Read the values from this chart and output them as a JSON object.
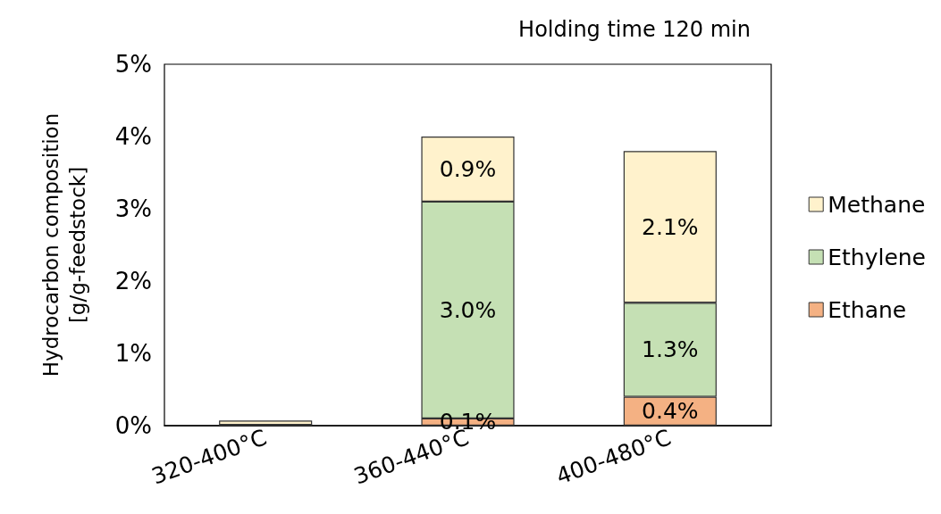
{
  "chart_data": {
    "type": "bar",
    "stacked": true,
    "title": "Holding time 120 min",
    "ylabel": "Hydrocarbon composition\n[g/g-feedstock]",
    "categories": [
      "320-400°C",
      "360-440°C",
      "400-480°C"
    ],
    "series": [
      {
        "name": "Ethane",
        "color": "#f4b183",
        "values": [
          0.01,
          0.1,
          0.4
        ],
        "value_labels": [
          null,
          "0.1%",
          "0.4%"
        ]
      },
      {
        "name": "Ethylene",
        "color": "#c5e0b4",
        "values": [
          0,
          3.0,
          1.3
        ],
        "value_labels": [
          null,
          "3.0%",
          "1.3%"
        ]
      },
      {
        "name": "Methane",
        "color": "#fff2cc",
        "values": [
          0.06,
          0.9,
          2.1
        ],
        "value_labels": [
          null,
          "0.9%",
          "2.1%"
        ]
      }
    ],
    "ylim": [
      0,
      5
    ],
    "yticks": [
      {
        "value": 0,
        "label": "0%"
      },
      {
        "value": 1,
        "label": "1%"
      },
      {
        "value": 2,
        "label": "2%"
      },
      {
        "value": 3,
        "label": "3%"
      },
      {
        "value": 4,
        "label": "4%"
      },
      {
        "value": 5,
        "label": "5%"
      }
    ],
    "grid": false,
    "legend": "right"
  }
}
